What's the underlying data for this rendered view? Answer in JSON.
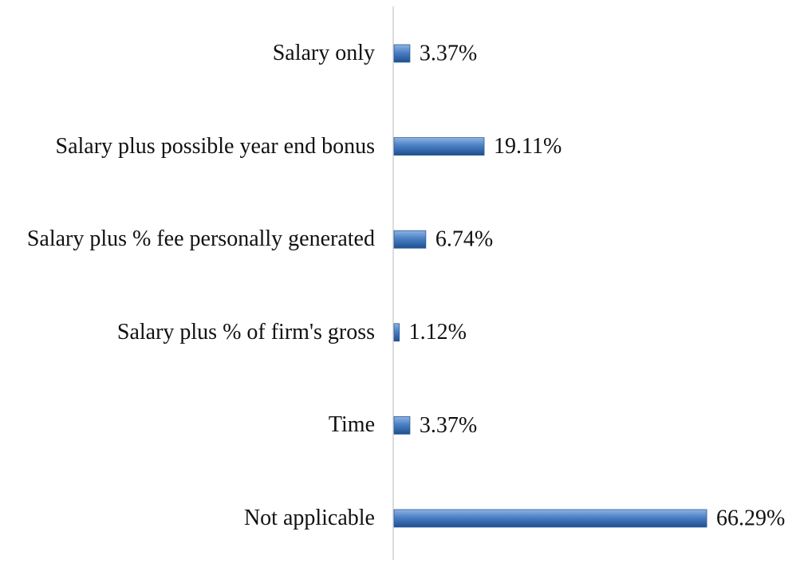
{
  "chart_data": {
    "type": "bar",
    "orientation": "horizontal",
    "categories": [
      "Salary only",
      "Salary plus possible year end bonus",
      "Salary plus % fee personally generated",
      "Salary plus % of firm's gross",
      "Time",
      "Not applicable"
    ],
    "values": [
      3.37,
      19.11,
      6.74,
      1.12,
      3.37,
      66.29
    ],
    "value_labels": [
      "3.37%",
      "19.11%",
      "6.74%",
      "1.12%",
      "3.37%",
      "66.29%"
    ],
    "color": "#3d74b8",
    "xlim": [
      0,
      70
    ],
    "grid": false
  }
}
